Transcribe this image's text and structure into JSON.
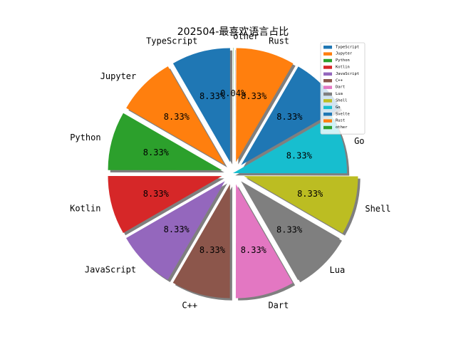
{
  "chart_data": {
    "type": "pie",
    "title": "202504-最喜欢语言占比",
    "start_angle_deg": 90,
    "direction": "counterclockwise",
    "shadow": true,
    "legend_position": "top-right",
    "slices": [
      {
        "label": "TypeScript",
        "value": 8.33,
        "pct_label": "8.33%",
        "color": "#1f77b4",
        "explode": true
      },
      {
        "label": "Jupyter",
        "value": 8.33,
        "pct_label": "8.33%",
        "color": "#ff7f0e",
        "explode": true
      },
      {
        "label": "Python",
        "value": 8.33,
        "pct_label": "8.33%",
        "color": "#2ca02c",
        "explode": true
      },
      {
        "label": "Kotlin",
        "value": 8.33,
        "pct_label": "8.33%",
        "color": "#d62728",
        "explode": true
      },
      {
        "label": "JavaScript",
        "value": 8.33,
        "pct_label": "8.33%",
        "color": "#9467bd",
        "explode": true
      },
      {
        "label": "C++",
        "value": 8.33,
        "pct_label": "8.33%",
        "color": "#8c564b",
        "explode": true
      },
      {
        "label": "Dart",
        "value": 8.33,
        "pct_label": "8.33%",
        "color": "#e377c2",
        "explode": true
      },
      {
        "label": "Lua",
        "value": 8.33,
        "pct_label": "8.33%",
        "color": "#7f7f7f",
        "explode": true
      },
      {
        "label": "Shell",
        "value": 8.33,
        "pct_label": "8.33%",
        "color": "#bcbd22",
        "explode": true
      },
      {
        "label": "Go",
        "value": 8.33,
        "pct_label": "8.33%",
        "color": "#17becf",
        "explode": false
      },
      {
        "label": "Svelte",
        "value": 8.33,
        "pct_label": "8.33%",
        "color": "#1f77b4",
        "explode": true,
        "hide_category_label": true
      },
      {
        "label": "Rust",
        "value": 8.33,
        "pct_label": "8.33%",
        "color": "#ff7f0e",
        "explode": true
      },
      {
        "label": "other",
        "value": 0.04,
        "pct_label": "0.04%",
        "color": "#2ca02c",
        "explode": true
      }
    ]
  }
}
